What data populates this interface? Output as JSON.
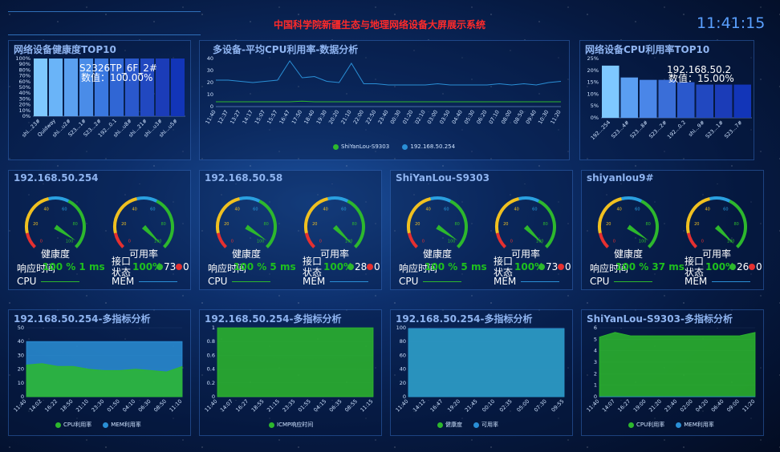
{
  "header": {
    "title": "中国科学院新疆生态与地理网络设备大屏展示系统",
    "clock": "11:41:15"
  },
  "colors": {
    "accent": "#2f6fb8",
    "title_red": "#ff2a2a",
    "green": "#2db82d",
    "blue": "#2a8fd6",
    "bar_light": "#7ec8ff",
    "bar_dark": "#1235b8"
  },
  "health_top10": {
    "title": "网络设备健康度TOP10",
    "tooltip_name": "S2326TP_6F_2#",
    "tooltip_value": "数值：100.00%",
    "chart_data": {
      "type": "bar",
      "categories": [
        "shi...23#",
        "Quidway",
        "shi...u2#",
        "S23...1#",
        "S23...2#",
        "192...0.1",
        "shi...u8#",
        "shi...21#",
        "shi...u3#",
        "shi...u5#"
      ],
      "values": [
        100,
        100,
        100,
        100,
        100,
        100,
        100,
        100,
        100,
        100
      ],
      "yticks": [
        "0%",
        "10%",
        "20%",
        "30%",
        "40%",
        "50%",
        "60%",
        "70%",
        "80%",
        "90%",
        "100%"
      ],
      "ylim": [
        0,
        100
      ]
    }
  },
  "cpu_multi": {
    "title": "多设备-平均CPU利用率-数据分析",
    "chart_data": {
      "type": "line",
      "x": [
        "11:40",
        "12:37",
        "13:27",
        "14:17",
        "15:07",
        "15:57",
        "16:47",
        "17:50",
        "18:40",
        "19:30",
        "20:20",
        "21:10",
        "22:00",
        "22:50",
        "23:40",
        "00:30",
        "01:20",
        "02:10",
        "03:00",
        "03:50",
        "04:40",
        "05:30",
        "06:20",
        "07:10",
        "08:00",
        "08:50",
        "09:40",
        "10:30",
        "11:20"
      ],
      "yticks": [
        "0",
        "10",
        "20",
        "30",
        "40"
      ],
      "ylim": [
        0,
        40
      ],
      "series": [
        {
          "name": "ShiYanLou-S9303",
          "values": [
            4,
            4,
            4,
            4,
            4,
            4,
            4,
            4.5,
            4,
            4,
            4,
            4,
            4,
            4,
            4,
            4,
            4,
            4,
            4,
            4,
            4,
            4,
            4,
            4,
            4,
            4,
            4,
            4,
            4
          ]
        },
        {
          "name": "192.168.50.254",
          "values": [
            22,
            22,
            21,
            20,
            21,
            22,
            38,
            24,
            25,
            21,
            20,
            36,
            19,
            19,
            18,
            18,
            18,
            18,
            19,
            18,
            18,
            18,
            18,
            19,
            18,
            19,
            18,
            20,
            21
          ]
        }
      ]
    }
  },
  "cpu_top10": {
    "title": "网络设备CPU利用率TOP10",
    "tooltip_name": "192.168.50.2",
    "tooltip_value": "数值：15.00%",
    "chart_data": {
      "type": "bar",
      "categories": [
        "192...254",
        "S23...4#",
        "S23...8#",
        "S23...2#",
        "192...0.2",
        "shi...9#",
        "S23...1#",
        "S23...7#"
      ],
      "values": [
        22,
        17,
        16,
        16,
        15,
        14,
        14,
        14
      ],
      "yticks": [
        "0%",
        "5%",
        "10%",
        "15%",
        "20%",
        "25%"
      ],
      "ylim": [
        0,
        25
      ]
    }
  },
  "devices": [
    {
      "name": "192.168.50.254",
      "health_label": "健康度",
      "avail_label": "可用率",
      "health": 96,
      "avail": 100,
      "resp_label": "响应时间",
      "resp_value": "100 % 1 ms",
      "port_label": "接口状态",
      "port_value": "100%",
      "port_up": "73",
      "port_down": "0",
      "cpu_label": "CPU",
      "mem_label": "MEM"
    },
    {
      "name": "192.168.50.58",
      "health_label": "健康度",
      "avail_label": "可用率",
      "health": 96,
      "avail": 100,
      "resp_label": "响应时间",
      "resp_value": "100 % 5 ms",
      "port_label": "接口状态",
      "port_value": "100%",
      "port_up": "28",
      "port_down": "0",
      "cpu_label": "CPU",
      "mem_label": "MEM"
    },
    {
      "name": "ShiYanLou-S9303",
      "health_label": "健康度",
      "avail_label": "可用率",
      "health": 96,
      "avail": 100,
      "resp_label": "响应时间",
      "resp_value": "100 % 5 ms",
      "port_label": "接口状态",
      "port_value": "100%",
      "port_up": "73",
      "port_down": "0",
      "cpu_label": "CPU",
      "mem_label": "MEM"
    },
    {
      "name": "shiyanlou9#",
      "health_label": "健康度",
      "avail_label": "可用率",
      "health": 96,
      "avail": 100,
      "resp_label": "响应时间",
      "resp_value": "100 % 37 ms",
      "port_label": "接口状态",
      "port_value": "100%",
      "port_up": "26",
      "port_down": "0",
      "cpu_label": "CPU",
      "mem_label": "MEM"
    }
  ],
  "gauge_ticks": [
    "0",
    "20",
    "40",
    "60",
    "80",
    "100"
  ],
  "bottom_charts": [
    {
      "title": "192.168.50.254-多指标分析",
      "chart_data": {
        "type": "area",
        "x": [
          "11:40",
          "14:02",
          "16:22",
          "18:50",
          "21:10",
          "23:30",
          "01:50",
          "04:10",
          "06:30",
          "08:50",
          "11:10"
        ],
        "yticks": [
          "0",
          "10",
          "20",
          "30",
          "40",
          "50"
        ],
        "ylim": [
          0,
          50
        ],
        "series": [
          {
            "name": "CPU利用率",
            "values": [
              23,
              24,
              22,
              22,
              20,
              19,
              19,
              20,
              19,
              18,
              22
            ]
          },
          {
            "name": "MEM利用率",
            "values": [
              40,
              40,
              40,
              40,
              40,
              40,
              40,
              40,
              40,
              40,
              40
            ]
          }
        ]
      }
    },
    {
      "title": "192.168.50.254-多指标分析",
      "chart_data": {
        "type": "area",
        "x": [
          "11:40",
          "14:07",
          "16:27",
          "18:55",
          "21:15",
          "23:35",
          "01:55",
          "04:15",
          "06:35",
          "08:55",
          "11:15"
        ],
        "yticks": [
          "0",
          "0.2",
          "0.4",
          "0.6",
          "0.8",
          "1"
        ],
        "ylim": [
          0,
          1
        ],
        "series": [
          {
            "name": "ICMP响应时间",
            "values": [
              1,
              1,
              1,
              1,
              1,
              1,
              1,
              1,
              1,
              1,
              1
            ]
          }
        ]
      }
    },
    {
      "title": "192.168.50.254-多指标分析",
      "chart_data": {
        "type": "area",
        "x": [
          "11:40",
          "14:12",
          "16:47",
          "19:20",
          "21:45",
          "00:10",
          "02:35",
          "05:00",
          "07:30",
          "09:55"
        ],
        "yticks": [
          "0",
          "20",
          "40",
          "60",
          "80",
          "100"
        ],
        "ylim": [
          0,
          100
        ],
        "series": [
          {
            "name": "健康度",
            "values": [
              99,
              99,
              97,
              99,
              99,
              99,
              99,
              99,
              99,
              99
            ]
          },
          {
            "name": "可用率",
            "values": [
              99,
              99,
              99,
              99,
              99,
              99,
              99,
              99,
              99,
              99
            ]
          }
        ]
      }
    },
    {
      "title": "ShiYanLou-S9303-多指标分析",
      "chart_data": {
        "type": "area",
        "x": [
          "11:40",
          "14:07",
          "16:27",
          "19:00",
          "21:20",
          "23:40",
          "02:00",
          "04:20",
          "06:40",
          "09:00",
          "11:20"
        ],
        "yticks": [
          "0",
          "1",
          "2",
          "3",
          "4",
          "5",
          "6"
        ],
        "ylim": [
          0,
          6
        ],
        "series": [
          {
            "name": "CPU利用率",
            "values": [
              5.2,
              5.6,
              5.3,
              5.3,
              5.3,
              5.3,
              5.3,
              5.3,
              5.3,
              5.3,
              5.6
            ]
          },
          {
            "name": "MEM利用率",
            "values": [
              0,
              0,
              0,
              0,
              0,
              0,
              0,
              0,
              0,
              0,
              0
            ]
          }
        ]
      }
    }
  ]
}
